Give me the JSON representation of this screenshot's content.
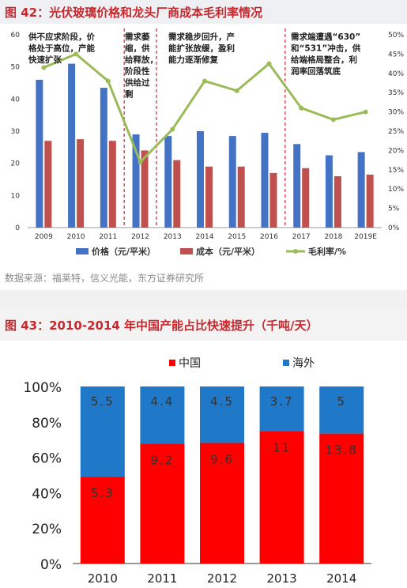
{
  "figure42": {
    "title": "图 42：光伏玻璃价格和龙头厂商成本毛利率情况",
    "source": "数据来源：福莱特，信义光能，东方证券研究所",
    "annotations": [
      [
        "供不应求阶段，价",
        "格处于高位，产能",
        "快速扩张"
      ],
      [
        "需求萎",
        "缩，供",
        "给释放，",
        "阶段性",
        "供给过",
        "剩"
      ],
      [
        "需求稳步回升，产",
        "能扩张放缓，盈利",
        "能力逐渐修复"
      ],
      [
        "需求端遭遇“630”",
        "和“531”冲击，供",
        "给端格局整合，利",
        "润率回落筑底"
      ]
    ]
  },
  "figure43": {
    "title": "图 43：2010-2014 年中国产能占比快速提升（千吨/天）"
  },
  "chart_data": [
    {
      "type": "bar",
      "title": "图 42：光伏玻璃价格和龙头厂商成本毛利率情况",
      "categories": [
        "2009",
        "2010",
        "2011",
        "2012",
        "2013",
        "2014",
        "2015",
        "2016",
        "2017",
        "2018",
        "2019E"
      ],
      "series": [
        {
          "name": "价格（元/平米）",
          "type": "bar",
          "axis": "left",
          "color": "#4472c4",
          "values": [
            46,
            51,
            43.5,
            29,
            28.5,
            30,
            28.5,
            29.5,
            26,
            22.5,
            23.5
          ]
        },
        {
          "name": "成本（元/平米）",
          "type": "bar",
          "axis": "left",
          "color": "#c0504d",
          "values": [
            27,
            27.5,
            27,
            24,
            21,
            19,
            19,
            17,
            18.5,
            16,
            16.5
          ]
        },
        {
          "name": "毛利率/%",
          "type": "line",
          "axis": "right",
          "color": "#9bbb59",
          "values": [
            41.5,
            45,
            38,
            17,
            25.5,
            38,
            35.5,
            42.5,
            31,
            28,
            30
          ]
        }
      ],
      "ylim_left": [
        0,
        60
      ],
      "yticks_left": [
        0,
        10,
        20,
        30,
        40,
        50,
        60
      ],
      "ylim_right": [
        0,
        50
      ],
      "yticks_right": [
        "0%",
        "5%",
        "10%",
        "15%",
        "20%",
        "25%",
        "30%",
        "35%",
        "40%",
        "45%",
        "50%"
      ],
      "dividers_after": [
        "2011",
        "2012",
        "2016"
      ]
    },
    {
      "type": "bar",
      "stacked": "percent",
      "title": "图 43：2010-2014 年中国产能占比快速提升（千吨/天）",
      "categories": [
        "2010",
        "2011",
        "2012",
        "2013",
        "2014"
      ],
      "series": [
        {
          "name": "中国",
          "color": "#ff0000",
          "values": [
            5.3,
            9.2,
            9.6,
            11,
            13.8
          ],
          "labels": [
            "5.3",
            "9.2",
            "9.6",
            "11",
            "13.8"
          ]
        },
        {
          "name": "海外",
          "color": "#1f78c8",
          "values": [
            5.5,
            4.4,
            4.5,
            3.7,
            5
          ],
          "labels": [
            "5.5",
            "4.4",
            "4.5",
            "3.7",
            "5"
          ]
        }
      ],
      "yticks": [
        "0%",
        "20%",
        "40%",
        "60%",
        "80%",
        "100%"
      ],
      "legend": "top"
    }
  ]
}
